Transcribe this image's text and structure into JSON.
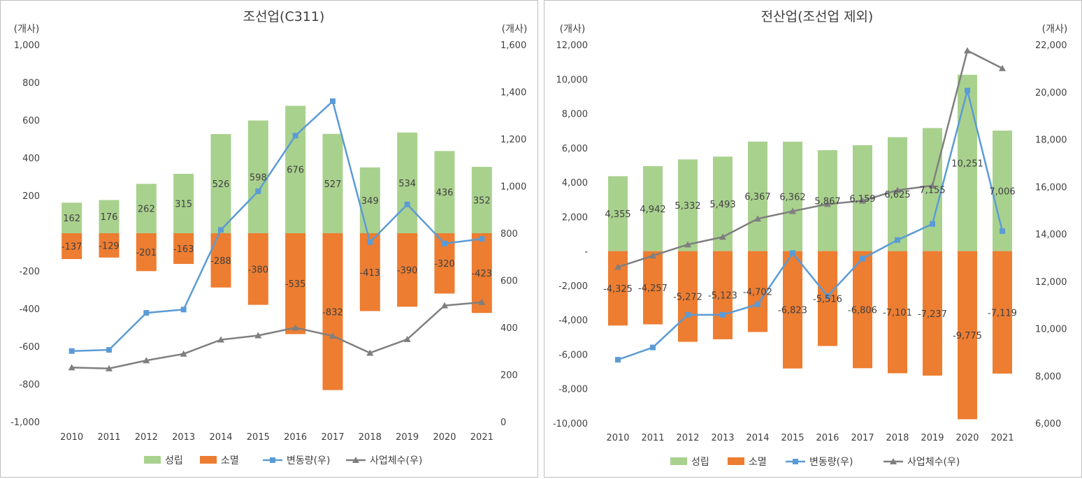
{
  "colors": {
    "established": "#a9d18e",
    "closed": "#ed7d31",
    "change": "#5b9bd5",
    "total": "#7f7f7f",
    "grid": "#d9d9d9",
    "text": "#404040"
  },
  "chart_data": [
    {
      "type": "bar",
      "title": "조선업(C311)",
      "left_unit": "(개사)",
      "right_unit": "(개사)",
      "categories": [
        "2010",
        "2011",
        "2012",
        "2013",
        "2014",
        "2015",
        "2016",
        "2017",
        "2018",
        "2019",
        "2020",
        "2021"
      ],
      "ylim": [
        -1000,
        1000
      ],
      "y_ticks": [
        -1000,
        -800,
        -600,
        -400,
        -200,
        0,
        200,
        400,
        600,
        800,
        1000
      ],
      "y_tick_labels": [
        "-1,000",
        "-800",
        "-600",
        "-400",
        "-200",
        "",
        "200",
        "400",
        "600",
        "800",
        "1,000"
      ],
      "y2lim": [
        0,
        1600
      ],
      "y2_ticks": [
        0,
        200,
        400,
        600,
        800,
        1000,
        1200,
        1400,
        1600
      ],
      "y2_tick_labels": [
        "0",
        "200",
        "400",
        "600",
        "800",
        "1,000",
        "1,200",
        "1,400",
        "1,600"
      ],
      "series": [
        {
          "name": "성립",
          "type": "bar",
          "axis": "left",
          "values": [
            162,
            176,
            262,
            315,
            526,
            598,
            676,
            527,
            349,
            534,
            436,
            352
          ],
          "labels": [
            "162",
            "176",
            "262",
            "315",
            "526",
            "598",
            "676",
            "527",
            "349",
            "534",
            "436",
            "352"
          ]
        },
        {
          "name": "소멸",
          "type": "bar",
          "axis": "left",
          "values": [
            -137,
            -129,
            -201,
            -163,
            -288,
            -380,
            -535,
            -832,
            -413,
            -390,
            -320,
            -423
          ],
          "labels": [
            "-137",
            "-129",
            "-201",
            "-163",
            "-288",
            "-380",
            "-535",
            "-832",
            "-413",
            "-390",
            "-320",
            "-423"
          ]
        },
        {
          "name": "변동량(우)",
          "type": "line",
          "axis": "right",
          "marker": "square",
          "values": [
            300,
            305,
            462,
            476,
            814,
            978,
            1214,
            1360,
            762,
            922,
            756,
            776
          ]
        },
        {
          "name": "사업체수(우)",
          "type": "line",
          "axis": "right",
          "marker": "triangle",
          "values": [
            230,
            226,
            260,
            288,
            348,
            366,
            399,
            364,
            292,
            350,
            493,
            507
          ]
        }
      ],
      "legend": [
        "성립",
        "소멸",
        "변동량(우)",
        "사업체수(우)"
      ],
      "legend_position": "bottom"
    },
    {
      "type": "bar",
      "title": "전산업(조선업 제외)",
      "left_unit": "(개사)",
      "right_unit": "(개사)",
      "categories": [
        "2010",
        "2011",
        "2012",
        "2013",
        "2014",
        "2015",
        "2016",
        "2017",
        "2018",
        "2019",
        "2020",
        "2021"
      ],
      "ylim": [
        -10000,
        12000
      ],
      "y_ticks": [
        -10000,
        -8000,
        -6000,
        -4000,
        -2000,
        0,
        2000,
        4000,
        6000,
        8000,
        10000,
        12000
      ],
      "y_tick_labels": [
        "-10,000",
        "-8,000",
        "-6,000",
        "-4,000",
        "-2,000",
        "-",
        "2,000",
        "4,000",
        "6,000",
        "8,000",
        "10,000",
        "12,000"
      ],
      "y2lim": [
        6000,
        22000
      ],
      "y2_ticks": [
        6000,
        8000,
        10000,
        12000,
        14000,
        16000,
        18000,
        20000,
        22000
      ],
      "y2_tick_labels": [
        "6,000",
        "8,000",
        "10,000",
        "12,000",
        "14,000",
        "16,000",
        "18,000",
        "20,000",
        "22,000"
      ],
      "series": [
        {
          "name": "성립",
          "type": "bar",
          "axis": "left",
          "values": [
            4355,
            4942,
            5332,
            5493,
            6367,
            6362,
            5867,
            6159,
            6625,
            7155,
            10251,
            7006
          ],
          "labels": [
            "4,355",
            "4,942",
            "5,332",
            "5,493",
            "6,367",
            "6,362",
            "5,867",
            "6,159",
            "6,625",
            "7,155",
            "10,251",
            "7,006"
          ]
        },
        {
          "name": "소멸",
          "type": "bar",
          "axis": "left",
          "values": [
            -4325,
            -4257,
            -5272,
            -5123,
            -4702,
            -6823,
            -5516,
            -6806,
            -7101,
            -7237,
            -9775,
            -7119
          ],
          "labels": [
            "-4,325",
            "-4,257",
            "-5,272",
            "-5,123",
            "-4,702",
            "-6,823",
            "-5,516",
            "-6,806",
            "-7,101",
            "-7,237",
            "-9,775",
            "-7,119"
          ]
        },
        {
          "name": "변동량(우)",
          "type": "line",
          "axis": "right",
          "marker": "square",
          "values": [
            8680,
            9200,
            10580,
            10580,
            11020,
            13190,
            11370,
            12960,
            13740,
            14420,
            20060,
            14120
          ]
        },
        {
          "name": "사업체수(우)",
          "type": "line",
          "axis": "right",
          "marker": "triangle",
          "values": [
            12600,
            13080,
            13550,
            13870,
            14640,
            14960,
            15260,
            15400,
            15850,
            16040,
            21750,
            21000
          ]
        }
      ],
      "legend": [
        "성립",
        "소멸",
        "변동량(우)",
        "사업체수(우)"
      ],
      "legend_position": "bottom"
    }
  ]
}
